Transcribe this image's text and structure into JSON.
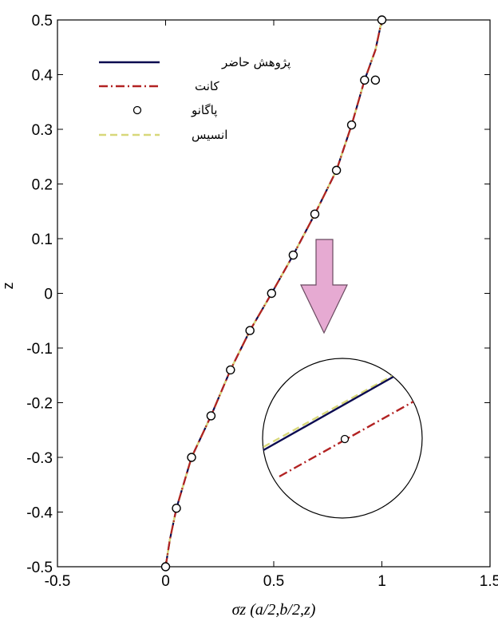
{
  "chart_data": {
    "type": "line",
    "title": "",
    "xlabel": "σz (a/2,b/2,z)",
    "ylabel": "z",
    "xlim": [
      -0.5,
      1.5
    ],
    "ylim": [
      -0.5,
      0.5
    ],
    "xticks": [
      "-0.5",
      "0",
      "0.5",
      "1",
      "1.5"
    ],
    "yticks": [
      "-0.5",
      "-0.4",
      "-0.3",
      "-0.2",
      "-0.1",
      "0",
      "0.1",
      "0.2",
      "0.3",
      "0.4",
      "0.5"
    ],
    "grid": false,
    "legend_position": "top-left",
    "series": [
      {
        "name": "پژوهش حاضر",
        "color": "#0a0a50",
        "style": "solid",
        "x": [
          0,
          0.02,
          0.05,
          0.12,
          0.21,
          0.3,
          0.39,
          0.49,
          0.59,
          0.69,
          0.79,
          0.86,
          0.92,
          0.97,
          1.0
        ],
        "y": [
          -0.5,
          -0.45,
          -0.393,
          -0.3,
          -0.224,
          -0.14,
          -0.068,
          0,
          0.07,
          0.145,
          0.225,
          0.308,
          0.39,
          0.445,
          0.5
        ]
      },
      {
        "name": "کانت",
        "color": "#b22222",
        "style": "dashdot",
        "x": [
          0,
          0.02,
          0.05,
          0.12,
          0.21,
          0.3,
          0.39,
          0.49,
          0.59,
          0.69,
          0.79,
          0.86,
          0.92,
          0.97,
          1.0
        ],
        "y": [
          -0.5,
          -0.45,
          -0.393,
          -0.3,
          -0.224,
          -0.14,
          -0.068,
          0,
          0.07,
          0.145,
          0.225,
          0.308,
          0.39,
          0.445,
          0.5
        ]
      },
      {
        "name": "پاگانو",
        "color": "#000000",
        "style": "markers",
        "x": [
          0,
          0.05,
          0.12,
          0.21,
          0.3,
          0.39,
          0.49,
          0.59,
          0.69,
          0.79,
          0.86,
          0.92,
          0.97,
          1.0
        ],
        "y": [
          -0.5,
          -0.393,
          -0.3,
          -0.224,
          -0.14,
          -0.068,
          0,
          0.07,
          0.145,
          0.225,
          0.308,
          0.39,
          0.39,
          0.5
        ]
      },
      {
        "name": "انسیس",
        "color": "#d8d87a",
        "style": "dashed",
        "x": [
          0,
          0.02,
          0.05,
          0.12,
          0.21,
          0.3,
          0.39,
          0.49,
          0.59,
          0.69,
          0.79,
          0.86,
          0.92,
          0.97,
          1.0
        ],
        "y": [
          -0.5,
          -0.45,
          -0.393,
          -0.3,
          -0.224,
          -0.14,
          -0.068,
          0,
          0.07,
          0.145,
          0.225,
          0.308,
          0.39,
          0.445,
          0.5
        ]
      }
    ]
  }
}
